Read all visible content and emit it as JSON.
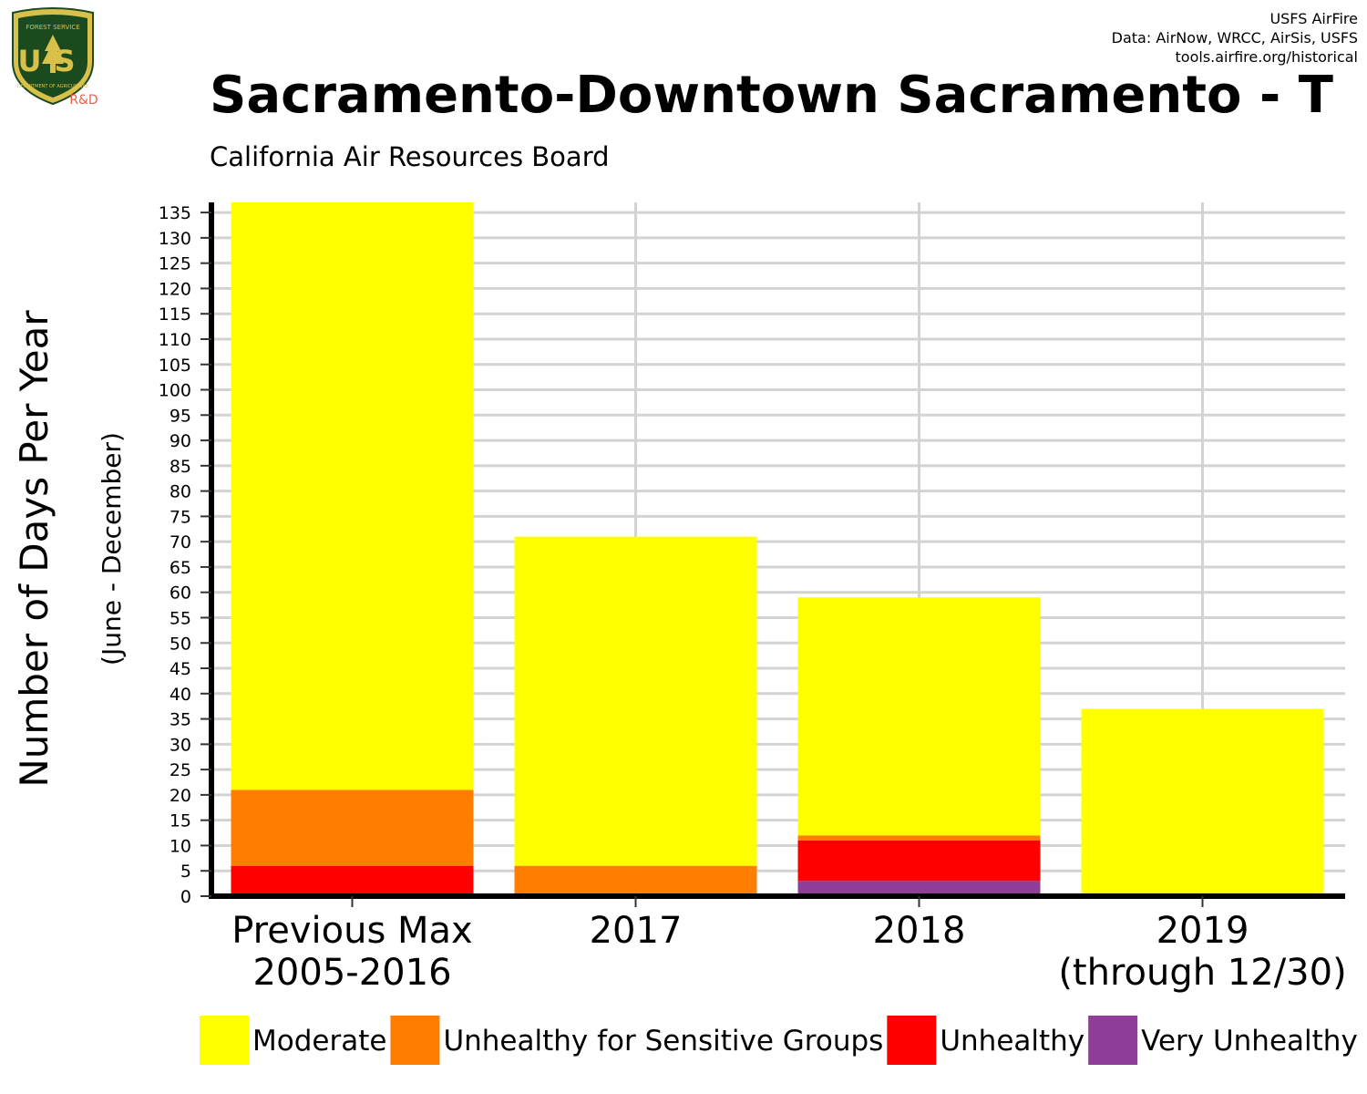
{
  "header": {
    "credit_lines": [
      "USFS AirFire",
      "Data: AirNow, WRCC, AirSis, USFS",
      "tools.airfire.org/historical"
    ],
    "title": "Sacramento-Downtown Sacramento - T",
    "subtitle": "California Air Resources Board",
    "logo": {
      "top_text": "FOREST SERVICE",
      "letters": "US",
      "bottom_text": "DEPARTMENT OF AGRICULTURE",
      "tag": "R&D"
    }
  },
  "colors": {
    "Moderate": "#ffff00",
    "Unhealthy for Sensitive Groups": "#ff7e00",
    "Unhealthy": "#ff0000",
    "Very Unhealthy": "#8f3f97",
    "grid": "#d3d3d3",
    "logo_green": "#1b4a1f",
    "logo_gold": "#d9c04a",
    "logo_tag": "#e8624a"
  },
  "chart_data": {
    "type": "bar",
    "stacked": true,
    "categories": [
      "Previous Max\n2005-2016",
      "2017",
      "2018",
      "2019\n(through 12/30)"
    ],
    "series": [
      {
        "name": "Very Unhealthy",
        "values": [
          0,
          0,
          3,
          0
        ]
      },
      {
        "name": "Unhealthy",
        "values": [
          6,
          0,
          8,
          0
        ]
      },
      {
        "name": "Unhealthy for Sensitive Groups",
        "values": [
          15,
          6,
          1,
          0
        ]
      },
      {
        "name": "Moderate",
        "values": [
          116,
          65,
          47,
          37
        ]
      }
    ],
    "ylabel": "Number of Days Per Year",
    "ylabel_sub": "(June - December)",
    "ylim": [
      0,
      137
    ],
    "yticks": [
      0,
      5,
      10,
      15,
      20,
      25,
      30,
      35,
      40,
      45,
      50,
      55,
      60,
      65,
      70,
      75,
      80,
      85,
      90,
      95,
      100,
      105,
      110,
      115,
      120,
      125,
      130,
      135
    ],
    "grid": true,
    "legend": {
      "position": "bottom",
      "items": [
        "Moderate",
        "Unhealthy for Sensitive Groups",
        "Unhealthy",
        "Very Unhealthy"
      ]
    }
  }
}
